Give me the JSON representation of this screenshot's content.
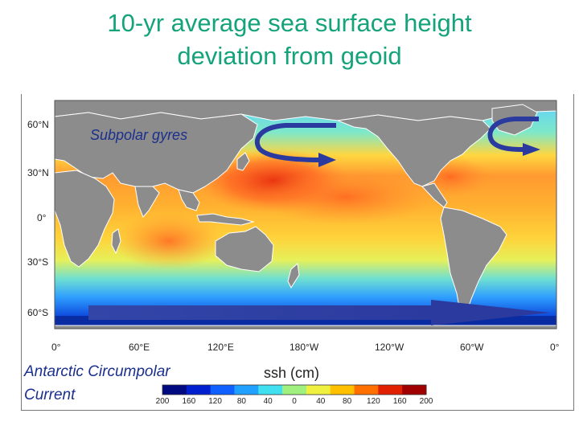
{
  "title_line1": "10-yr average sea surface height",
  "title_line2": "deviation from geoid",
  "map": {
    "lat_labels": [
      "60°N",
      "30°N",
      "0°",
      "30°S",
      "60°S"
    ],
    "lon_labels": [
      "0°",
      "60°E",
      "120°E",
      "180°W",
      "120°W",
      "60°W",
      "0°"
    ],
    "annotation_subpolar": "Subpolar gyres",
    "annotation_acc_line1": "Antarctic Circumpolar",
    "annotation_acc_line2": "Current",
    "arrow_color": "#2b3a9e",
    "land_color": "#8c8c8c"
  },
  "colorbar": {
    "label": "ssh (cm)",
    "ticks": [
      "200",
      "160",
      "120",
      "80",
      "40",
      "0",
      "40",
      "80",
      "120",
      "160",
      "200"
    ],
    "colors": [
      "#000a80",
      "#0020d0",
      "#1060ff",
      "#20a0ff",
      "#40e0f0",
      "#a0f080",
      "#f0f040",
      "#ffc000",
      "#ff7000",
      "#e02000",
      "#a00000"
    ]
  }
}
